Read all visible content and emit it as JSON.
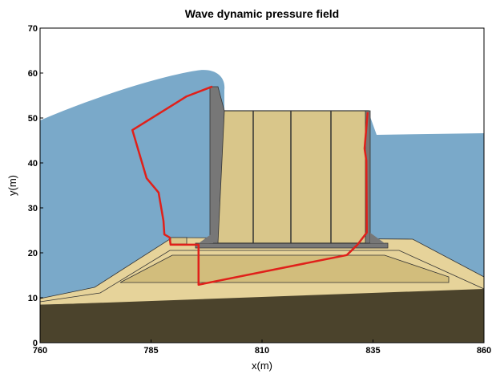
{
  "chart_data": {
    "type": "line",
    "title": "Wave dynamic pressure field",
    "x_label": "x(m)",
    "y_label": "y(m)",
    "x": [
      798.8,
      793.0,
      780.8,
      784.0,
      786.7,
      787.8,
      788.0,
      789.2,
      789.4,
      795.7,
      795.7,
      829.1,
      831.5,
      833.6,
      833.5,
      833.1,
      833.8
    ],
    "series": [
      {
        "color": "#e0201a",
        "values": [
          57.0,
          54.8,
          47.3,
          36.6,
          33.4,
          27.1,
          24.1,
          23.4,
          21.8,
          21.8,
          12.9,
          19.5,
          21.8,
          24.5,
          40.5,
          43.2,
          51.3
        ]
      }
    ],
    "xlim": [
      760,
      860
    ],
    "ylim": [
      0,
      70
    ],
    "xticks": [
      760,
      785,
      810,
      835,
      860
    ],
    "yticks": [
      0,
      10,
      20,
      30,
      40,
      50,
      60,
      70
    ]
  }
}
